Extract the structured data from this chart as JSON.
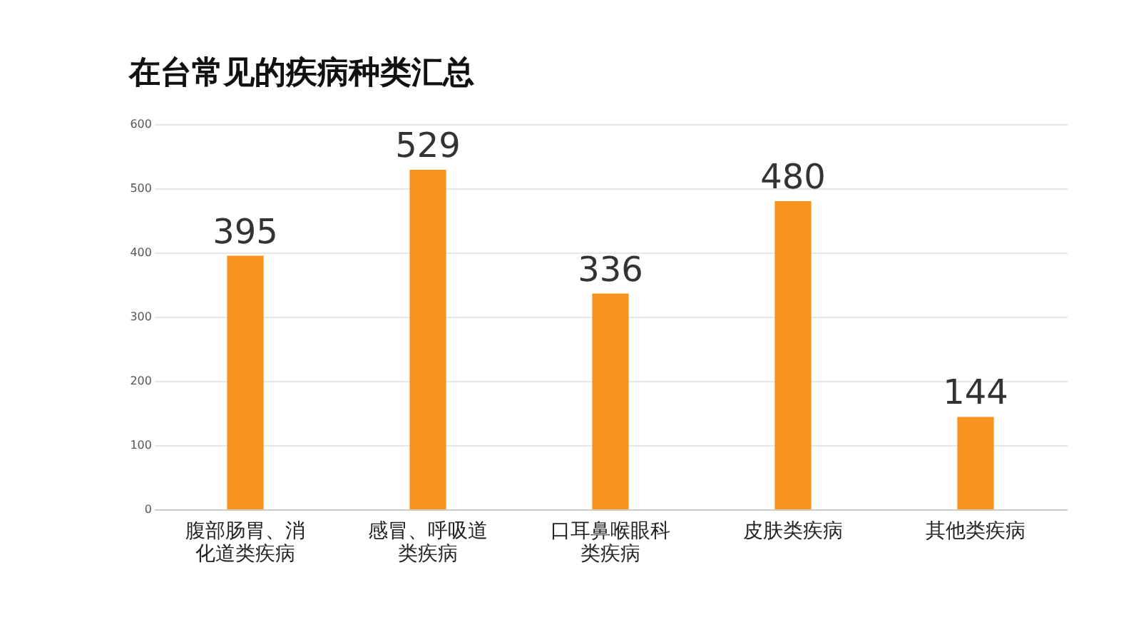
{
  "chart_data": {
    "type": "bar",
    "title": "在台常见的疾病种类汇总",
    "categories": [
      "腹部肠胃、消化道类疾病",
      "感冒、呼吸道类疾病",
      "口耳鼻喉眼科类疾病",
      "皮肤类疾病",
      "其他类疾病"
    ],
    "values": [
      395,
      529,
      336,
      480,
      144
    ],
    "color": "#f7931e",
    "ylim": [
      0,
      600
    ],
    "yticks": [
      0,
      100,
      200,
      300,
      400,
      500,
      600
    ],
    "grid": "y",
    "data_labels": true
  }
}
